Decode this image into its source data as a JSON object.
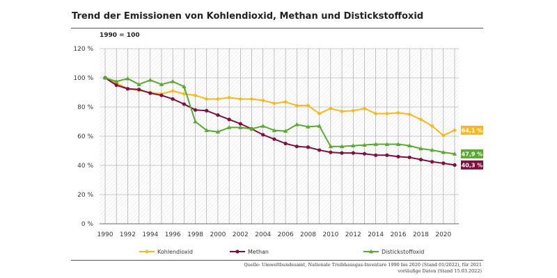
{
  "header": {
    "title": "Trend der Emissionen von Kohlendioxid, Methan und Distickstoffoxid",
    "base_note": "1990 = 100"
  },
  "source": {
    "line1": "Quelle: Umweltbundesamt, Nationale Treibhausgas-Inventare 1990 bis 2020 (Stand 01/2022), für 2021",
    "line2": "vorläufige Daten (Stand 15.03.2022)"
  },
  "chart_data": {
    "type": "line",
    "title": "Trend der Emissionen von Kohlendioxid, Methan und Distickstoffoxid",
    "subtitle": "1990 = 100",
    "xlim": [
      1990,
      2021
    ],
    "ylim": [
      0,
      120
    ],
    "x_ticks": [
      1990,
      1992,
      1994,
      1996,
      1998,
      2000,
      2002,
      2004,
      2006,
      2008,
      2010,
      2012,
      2014,
      2016,
      2018,
      2020
    ],
    "x_tick_labels": [
      "1990",
      "1992",
      "1994",
      "1996",
      "1998",
      "2000",
      "2002",
      "2004",
      "2006",
      "2008",
      "2010",
      "2012",
      "2014",
      "2016",
      "2018",
      "2020"
    ],
    "y_ticks": [
      0,
      20,
      40,
      60,
      80,
      100,
      120
    ],
    "y_tick_labels": [
      "0 %",
      "20 %",
      "40 %",
      "60 %",
      "80 %",
      "100 %",
      "120 %"
    ],
    "grid": "vertical-and-horizontal",
    "legend_position": "bottom",
    "x": [
      1990,
      1991,
      1992,
      1993,
      1994,
      1995,
      1996,
      1997,
      1998,
      1999,
      2000,
      2001,
      2002,
      2003,
      2004,
      2005,
      2006,
      2007,
      2008,
      2009,
      2010,
      2011,
      2012,
      2013,
      2014,
      2015,
      2016,
      2017,
      2018,
      2019,
      2020,
      2021
    ],
    "series": [
      {
        "name": "Kohlendioxid",
        "color": "#f5b81f",
        "marker": "diamond",
        "values": [
          100,
          96.5,
          92.5,
          91.5,
          90,
          89,
          91,
          89,
          88,
          85.5,
          85.5,
          86.5,
          85.5,
          85.5,
          84.5,
          82.5,
          83.5,
          81,
          81,
          75.5,
          79,
          77,
          77.5,
          79,
          75.5,
          75.5,
          76,
          75,
          71.5,
          67,
          60.5,
          64.1
        ],
        "end_label": "64,1 %"
      },
      {
        "name": "Methan",
        "color": "#7f0f3e",
        "marker": "circle",
        "values": [
          100,
          95,
          92.5,
          92,
          89.5,
          88,
          85.5,
          82,
          78,
          77.5,
          74.5,
          71.5,
          68.5,
          65,
          61,
          58,
          55,
          53,
          52.5,
          50.5,
          49,
          48.5,
          48.5,
          48,
          47,
          47,
          46,
          45.5,
          44,
          42.5,
          41.5,
          40.3
        ],
        "end_label": "40,3 %"
      },
      {
        "name": "Distickstoffoxid",
        "color": "#5ba833",
        "marker": "triangle",
        "values": [
          100,
          97.5,
          99.5,
          95.5,
          98.5,
          95.5,
          97.5,
          94,
          70,
          64,
          63,
          66,
          66,
          65,
          67,
          64,
          63.5,
          68,
          66.5,
          67,
          53,
          53,
          53.5,
          54,
          54.5,
          54.5,
          54.5,
          53.5,
          51.5,
          50.5,
          49,
          47.9
        ],
        "end_label": "47,9 %"
      }
    ]
  }
}
